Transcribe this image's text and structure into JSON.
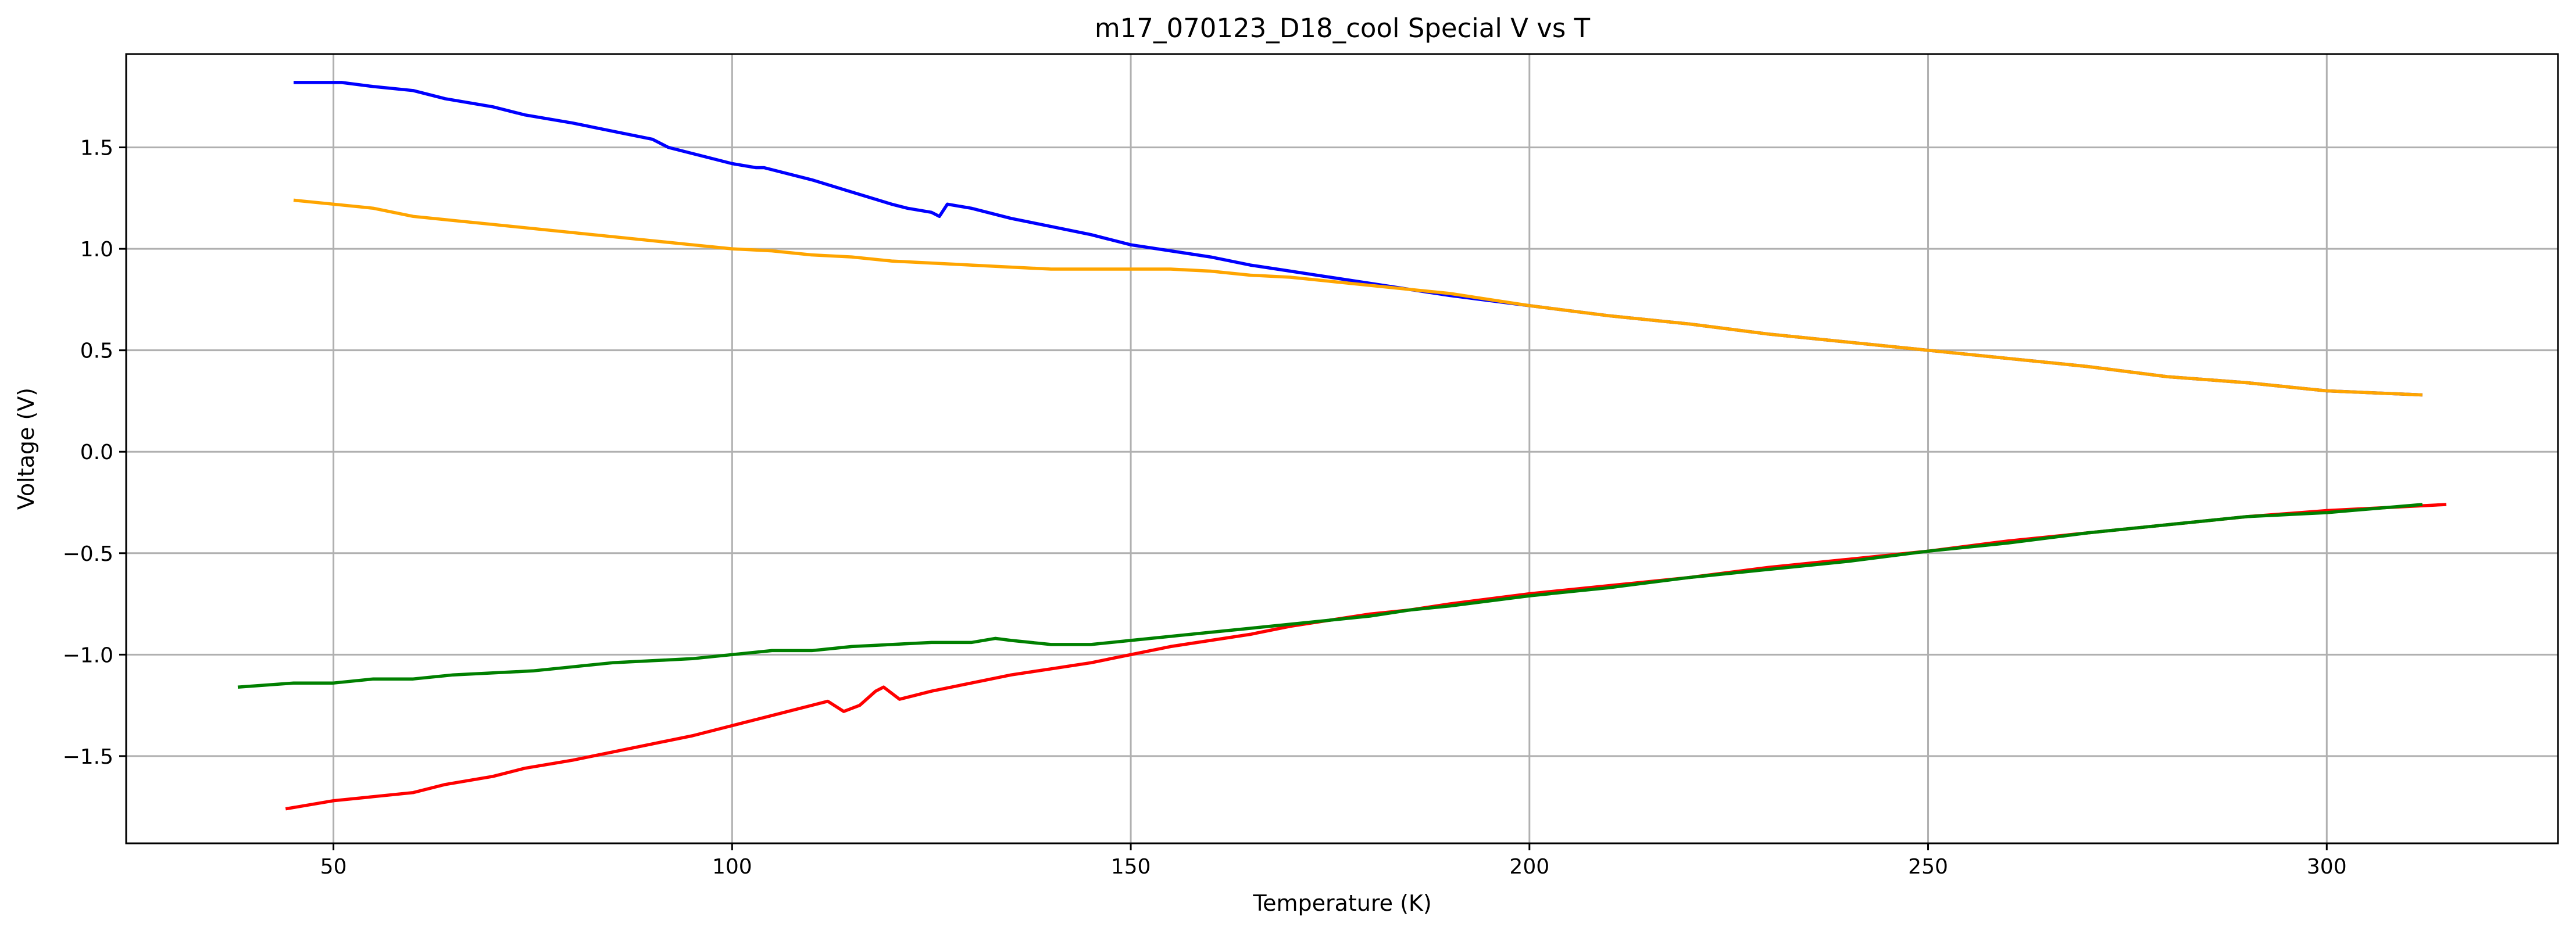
{
  "chart_data": {
    "type": "line",
    "title": "m17_070123_D18_cool Special V vs T",
    "xlabel": "Temperature (K)",
    "ylabel": "Voltage (V)",
    "xlim": [
      24,
      329
    ],
    "ylim": [
      -1.93,
      1.96
    ],
    "xticks": [
      50,
      100,
      150,
      200,
      250,
      300
    ],
    "xtick_labels": [
      "50",
      "100",
      "150",
      "200",
      "250",
      "300"
    ],
    "yticks": [
      -1.5,
      -1.0,
      -0.5,
      0.0,
      0.5,
      1.0,
      1.5
    ],
    "ytick_labels": [
      "−1.5",
      "−1.0",
      "−0.5",
      "0.0",
      "0.5",
      "1.0",
      "1.5"
    ],
    "grid": true,
    "series": [
      {
        "color": "#0000ff",
        "x": [
          45,
          51,
          55,
          60,
          64,
          70,
          74,
          80,
          85,
          90,
          92,
          100,
          103,
          104,
          110,
          115,
          120,
          122,
          125,
          126,
          127,
          130,
          135,
          140,
          145,
          150,
          155,
          160,
          165,
          170,
          175,
          180,
          185,
          190,
          200,
          210,
          220,
          230,
          240,
          250,
          260,
          270,
          280,
          290,
          300,
          312
        ],
        "y": [
          1.82,
          1.82,
          1.8,
          1.78,
          1.74,
          1.7,
          1.66,
          1.62,
          1.58,
          1.54,
          1.5,
          1.42,
          1.4,
          1.4,
          1.34,
          1.28,
          1.22,
          1.2,
          1.18,
          1.16,
          1.22,
          1.2,
          1.15,
          1.11,
          1.07,
          1.02,
          0.99,
          0.96,
          0.92,
          0.89,
          0.86,
          0.83,
          0.8,
          0.77,
          0.72,
          0.67,
          0.63,
          0.58,
          0.54,
          0.5,
          0.46,
          0.42,
          0.37,
          0.34,
          0.3,
          0.28
        ]
      },
      {
        "color": "#ffa500",
        "x": [
          45,
          50,
          55,
          60,
          65,
          70,
          75,
          80,
          85,
          90,
          95,
          100,
          105,
          110,
          115,
          120,
          125,
          130,
          135,
          140,
          145,
          150,
          155,
          160,
          165,
          170,
          175,
          180,
          185,
          190,
          200,
          210,
          220,
          230,
          240,
          250,
          260,
          270,
          280,
          290,
          300,
          312
        ],
        "y": [
          1.24,
          1.22,
          1.2,
          1.16,
          1.14,
          1.12,
          1.1,
          1.08,
          1.06,
          1.04,
          1.02,
          1.0,
          0.99,
          0.97,
          0.96,
          0.94,
          0.93,
          0.92,
          0.91,
          0.9,
          0.9,
          0.9,
          0.9,
          0.89,
          0.87,
          0.86,
          0.84,
          0.82,
          0.8,
          0.78,
          0.72,
          0.67,
          0.63,
          0.58,
          0.54,
          0.5,
          0.46,
          0.42,
          0.37,
          0.34,
          0.3,
          0.28
        ]
      },
      {
        "color": "#ff0000",
        "x": [
          44,
          50,
          55,
          60,
          64,
          70,
          74,
          80,
          85,
          90,
          95,
          100,
          103,
          104,
          108,
          112,
          114,
          116,
          118,
          119,
          121,
          123,
          125,
          130,
          135,
          140,
          145,
          150,
          155,
          160,
          165,
          170,
          175,
          180,
          185,
          190,
          200,
          210,
          220,
          230,
          240,
          250,
          260,
          270,
          280,
          290,
          300,
          315
        ],
        "y": [
          -1.76,
          -1.72,
          -1.7,
          -1.68,
          -1.64,
          -1.6,
          -1.56,
          -1.52,
          -1.48,
          -1.44,
          -1.4,
          -1.35,
          -1.32,
          -1.31,
          -1.27,
          -1.23,
          -1.28,
          -1.25,
          -1.18,
          -1.16,
          -1.22,
          -1.2,
          -1.18,
          -1.14,
          -1.1,
          -1.07,
          -1.04,
          -1.0,
          -0.96,
          -0.93,
          -0.9,
          -0.86,
          -0.83,
          -0.8,
          -0.78,
          -0.75,
          -0.7,
          -0.66,
          -0.62,
          -0.57,
          -0.53,
          -0.49,
          -0.44,
          -0.4,
          -0.36,
          -0.32,
          -0.29,
          -0.26
        ]
      },
      {
        "color": "#008000",
        "x": [
          38,
          45,
          50,
          55,
          60,
          65,
          70,
          75,
          80,
          85,
          90,
          95,
          100,
          105,
          110,
          115,
          120,
          125,
          130,
          133,
          135,
          140,
          145,
          150,
          155,
          160,
          165,
          170,
          175,
          180,
          185,
          190,
          200,
          210,
          220,
          230,
          240,
          250,
          260,
          270,
          280,
          290,
          300,
          312
        ],
        "y": [
          -1.16,
          -1.14,
          -1.14,
          -1.12,
          -1.12,
          -1.1,
          -1.09,
          -1.08,
          -1.06,
          -1.04,
          -1.03,
          -1.02,
          -1.0,
          -0.98,
          -0.98,
          -0.96,
          -0.95,
          -0.94,
          -0.94,
          -0.92,
          -0.93,
          -0.95,
          -0.95,
          -0.93,
          -0.91,
          -0.89,
          -0.87,
          -0.85,
          -0.83,
          -0.81,
          -0.78,
          -0.76,
          -0.71,
          -0.67,
          -0.62,
          -0.58,
          -0.54,
          -0.49,
          -0.45,
          -0.4,
          -0.36,
          -0.32,
          -0.3,
          -0.26
        ]
      }
    ]
  }
}
